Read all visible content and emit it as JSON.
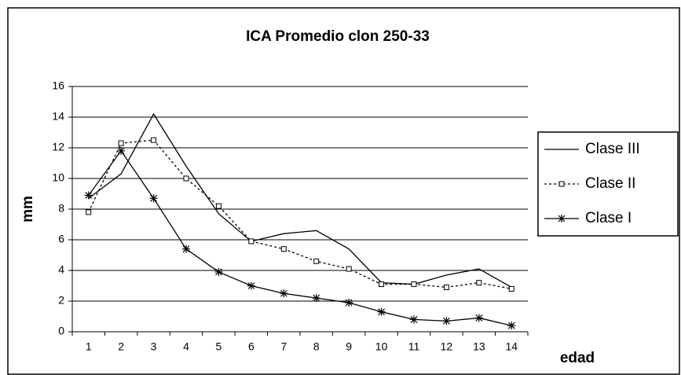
{
  "chart_data": {
    "type": "line",
    "title": "ICA Promedio clon 250-33",
    "x_label": "edad",
    "y_label": "mm",
    "categories": [
      "1",
      "2",
      "3",
      "4",
      "5",
      "6",
      "7",
      "8",
      "9",
      "10",
      "11",
      "12",
      "13",
      "14"
    ],
    "series": [
      {
        "name": "Clase III",
        "color": "#000000",
        "dash": "solid",
        "marker": "none",
        "values": [
          8.7,
          10.3,
          14.2,
          10.8,
          7.7,
          5.9,
          6.4,
          6.6,
          5.4,
          3.2,
          3.1,
          3.7,
          4.1,
          2.9
        ]
      },
      {
        "name": "Clase II",
        "color": "#000000",
        "dash": "dotted",
        "marker": "square",
        "values": [
          7.8,
          12.3,
          12.5,
          10.0,
          8.2,
          5.9,
          5.4,
          4.6,
          4.1,
          3.1,
          3.1,
          2.9,
          3.2,
          2.8
        ]
      },
      {
        "name": "Clase I",
        "color": "#000000",
        "dash": "solid",
        "marker": "asterisk",
        "values": [
          8.9,
          11.8,
          8.7,
          5.4,
          3.9,
          3.0,
          2.5,
          2.2,
          1.9,
          1.3,
          0.8,
          0.7,
          0.9,
          0.4
        ]
      }
    ],
    "ylim": [
      0,
      16
    ],
    "yticks": [
      0,
      2,
      4,
      6,
      8,
      10,
      12,
      14,
      16
    ],
    "grid": true,
    "legend": "right"
  }
}
